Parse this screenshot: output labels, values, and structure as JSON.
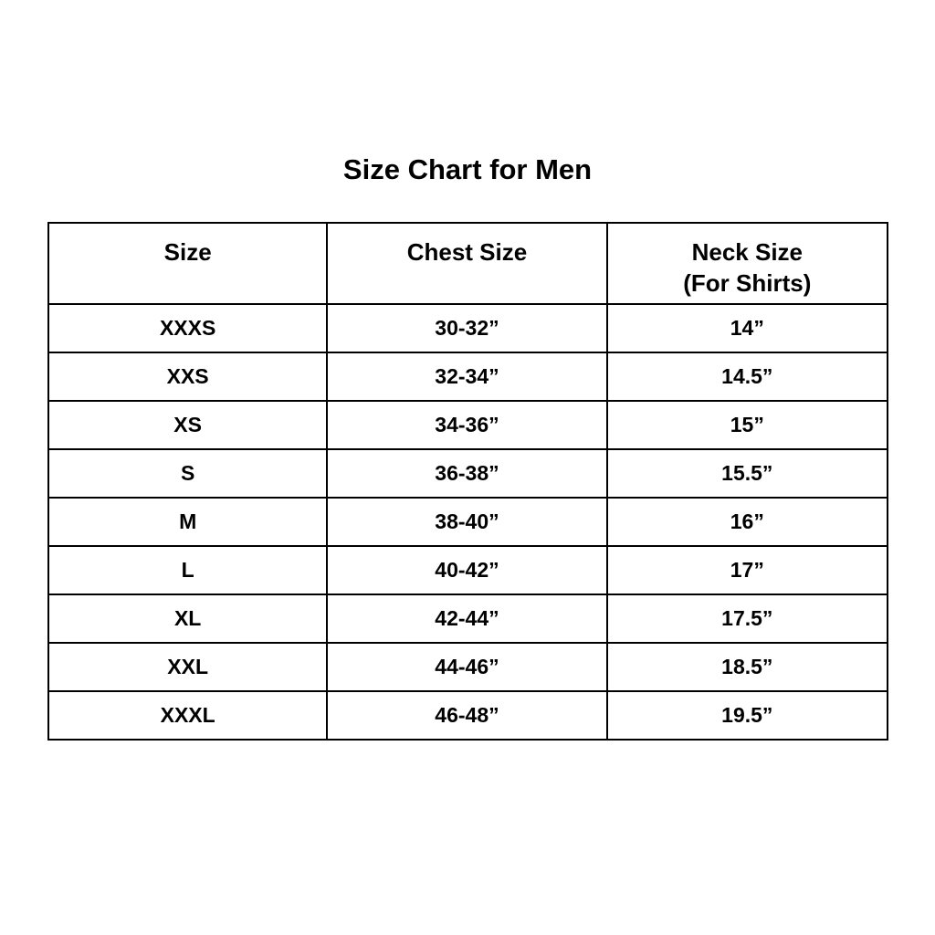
{
  "title": "Size Chart for Men",
  "headers": [
    "Size",
    "Chest Size",
    "Neck Size",
    "(For Shirts)"
  ],
  "rows": [
    [
      "XXXS",
      "30-32”",
      "14”"
    ],
    [
      "XXS",
      "32-34”",
      "14.5”"
    ],
    [
      "XS",
      "34-36”",
      "15”"
    ],
    [
      "S",
      "36-38”",
      "15.5”"
    ],
    [
      "M",
      "38-40”",
      "16”"
    ],
    [
      "L",
      "40-42”",
      "17”"
    ],
    [
      "XL",
      "42-44”",
      "17.5”"
    ],
    [
      "XXL",
      "44-46”",
      "18.5”"
    ],
    [
      "XXXL",
      "46-48”",
      "19.5”"
    ]
  ]
}
